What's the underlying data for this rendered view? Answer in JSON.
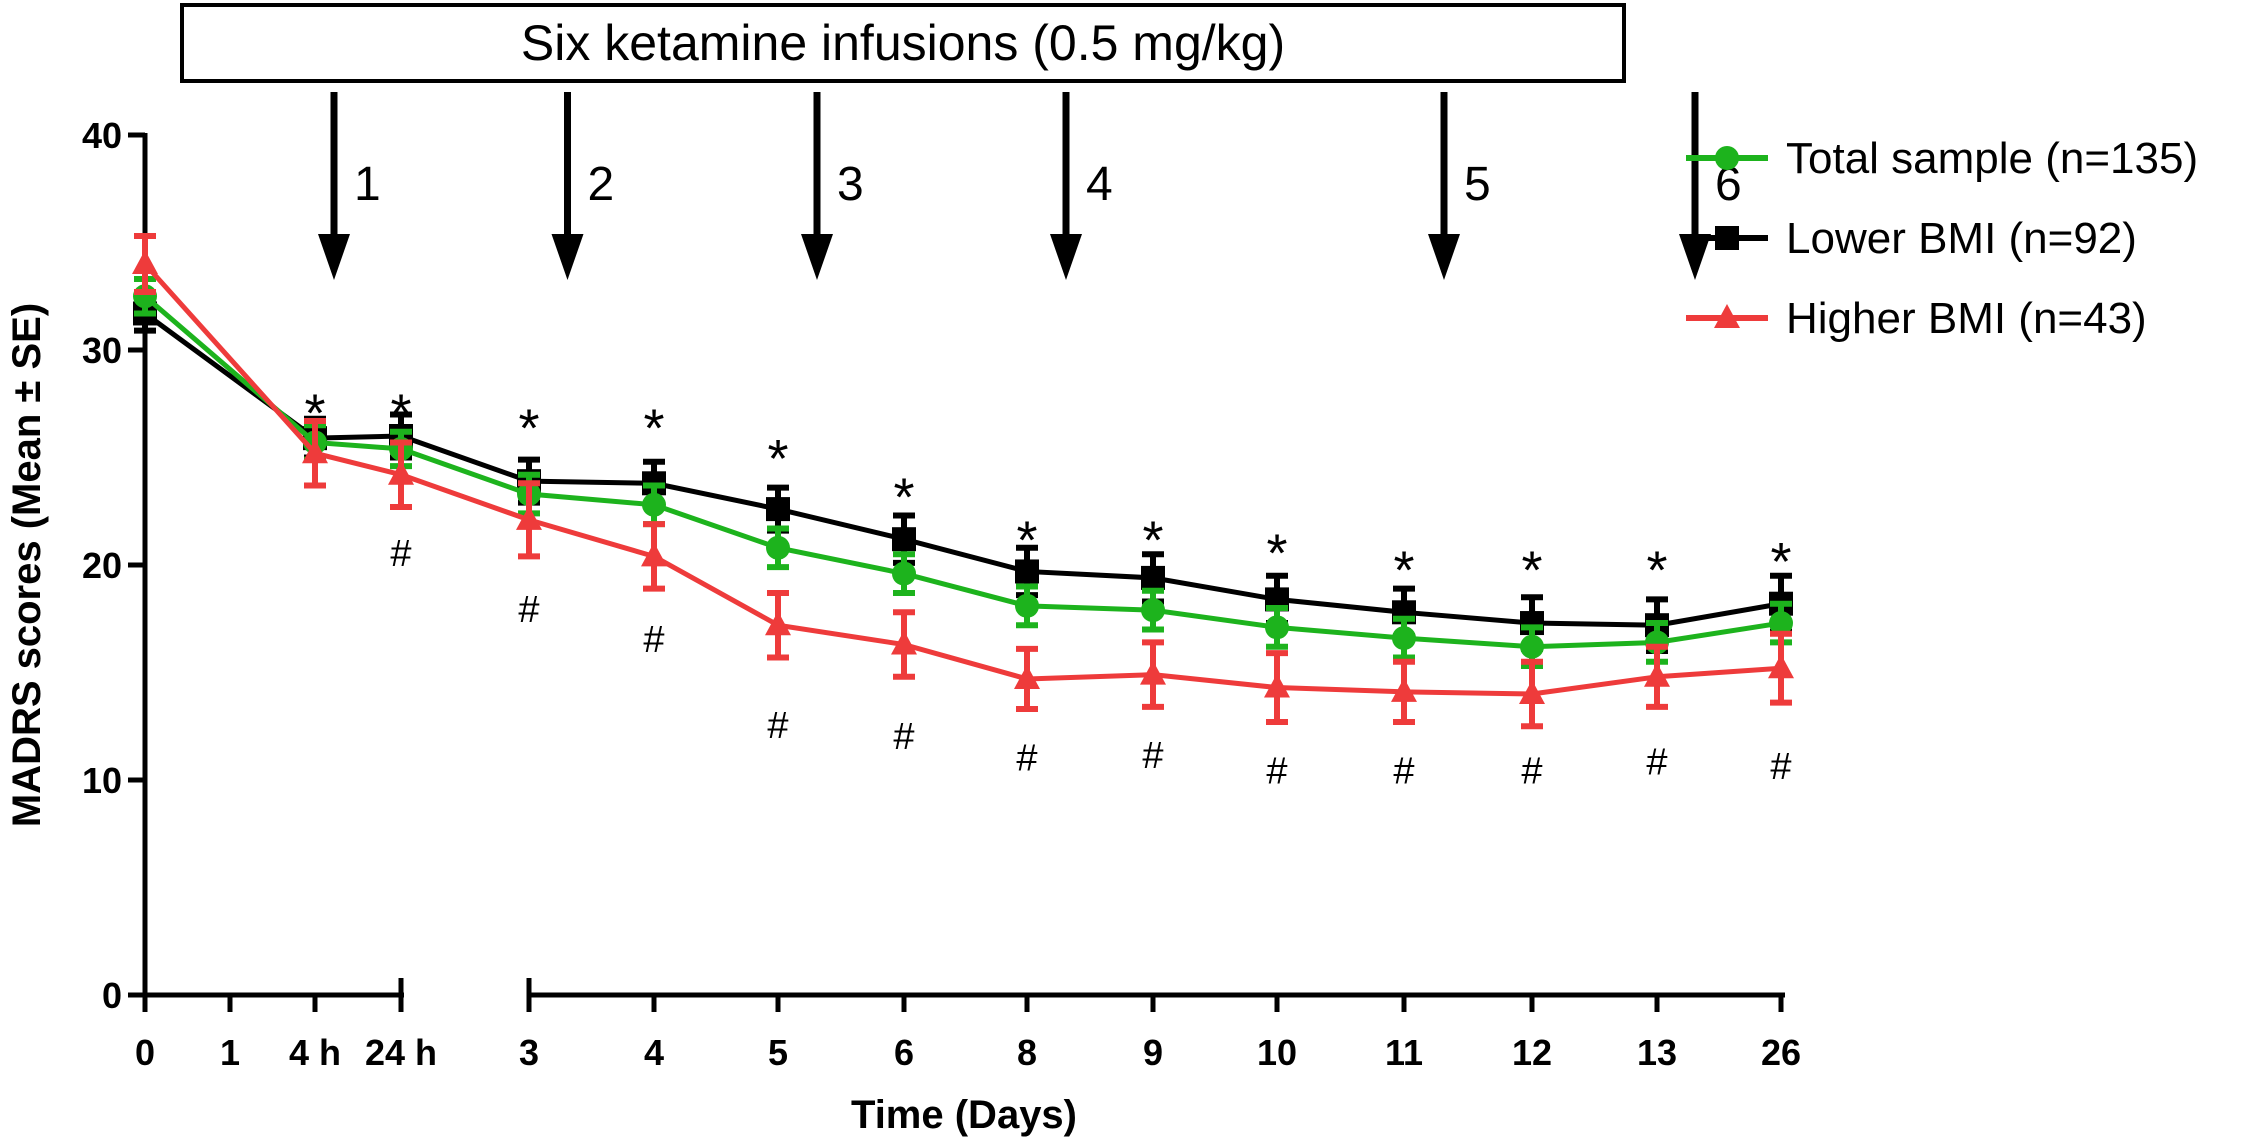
{
  "chart_data": {
    "type": "line",
    "banner": "Six ketamine infusions (0.5 mg/kg)",
    "infusion_labels": [
      "1",
      "2",
      "3",
      "4",
      "5",
      "6"
    ],
    "infusion_after_index": [
      2,
      4,
      6,
      8,
      11,
      13
    ],
    "xlabel": "Time (Days)",
    "ylabel": "MADRS scores (Mean ± SE)",
    "ylim": [
      0,
      40
    ],
    "yticks": [
      "0",
      "10",
      "20",
      "30",
      "40"
    ],
    "categories": [
      "0",
      "1",
      "4 h",
      "24 h",
      "3",
      "4",
      "5",
      "6",
      "8",
      "9",
      "10",
      "11",
      "12",
      "13",
      "26"
    ],
    "series": [
      {
        "name": "Total sample (n=135)",
        "color": "#1db31d",
        "marker": "circle",
        "values": [
          32.5,
          null,
          25.7,
          25.4,
          23.3,
          22.8,
          20.8,
          19.6,
          18.1,
          17.9,
          17.1,
          16.6,
          16.2,
          16.4,
          17.3
        ],
        "errors": [
          0.8,
          null,
          0.8,
          0.8,
          0.9,
          0.9,
          0.9,
          0.9,
          0.9,
          0.9,
          0.9,
          0.9,
          0.9,
          0.9,
          0.9
        ]
      },
      {
        "name": "Lower BMI (n=92)",
        "color": "#000000",
        "marker": "square",
        "values": [
          31.7,
          null,
          25.9,
          26.0,
          23.9,
          23.8,
          22.6,
          21.2,
          19.7,
          19.4,
          18.4,
          17.8,
          17.3,
          17.2,
          18.2
        ],
        "errors": [
          0.8,
          null,
          0.9,
          1.0,
          1.0,
          1.0,
          1.0,
          1.1,
          1.1,
          1.1,
          1.1,
          1.1,
          1.2,
          1.2,
          1.3
        ]
      },
      {
        "name": "Higher BMI (n=43)",
        "color": "#ee3b3b",
        "marker": "triangle",
        "values": [
          34.0,
          null,
          25.2,
          24.2,
          22.1,
          20.4,
          17.2,
          16.3,
          14.7,
          14.9,
          14.3,
          14.1,
          14.0,
          14.8,
          15.2
        ],
        "errors": [
          1.3,
          null,
          1.5,
          1.5,
          1.7,
          1.5,
          1.5,
          1.5,
          1.4,
          1.5,
          1.6,
          1.4,
          1.5,
          1.4,
          1.6
        ]
      }
    ],
    "significance": {
      "asterisk_label": "*",
      "asterisk_indices": [
        2,
        3,
        4,
        5,
        6,
        7,
        8,
        9,
        10,
        11,
        12,
        13,
        14
      ],
      "asterisk_values": [
        27.6,
        27.6,
        26.9,
        26.9,
        25.5,
        23.7,
        21.7,
        21.7,
        21.1,
        20.3,
        20.3,
        20.3,
        20.7
      ],
      "hash_label": "#",
      "hash_indices": [
        3,
        4,
        5,
        6,
        7,
        8,
        9,
        10,
        11,
        12,
        13,
        14
      ],
      "hash_values": [
        20.6,
        18.0,
        16.6,
        12.6,
        12.1,
        11.1,
        11.2,
        10.5,
        10.5,
        10.5,
        10.9,
        10.7
      ]
    },
    "legend_position": "top-right"
  }
}
